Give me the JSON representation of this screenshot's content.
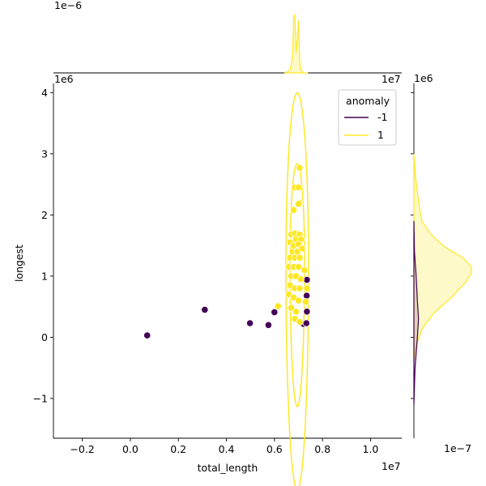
{
  "chart_data": {
    "type": "scatter",
    "title": "",
    "xlabel": "total_length",
    "ylabel": "longest",
    "x_offset_label": "1e7",
    "y_offset_label": "1e6",
    "xlim": [
      -3200000,
      11300000
    ],
    "ylim": [
      -1650000,
      4150000
    ],
    "xticks": [
      -2000000,
      0,
      2000000,
      4000000,
      6000000,
      8000000,
      10000000
    ],
    "xtick_labels": [
      "−0.2",
      "0.0",
      "0.2",
      "0.4",
      "0.6",
      "0.8",
      "1.0"
    ],
    "yticks": [
      -1000000,
      0,
      1000000,
      2000000,
      3000000,
      4000000
    ],
    "ytick_labels": [
      "−1",
      "0",
      "1",
      "2",
      "3",
      "4"
    ],
    "grid": false,
    "legend": {
      "title": "anomaly",
      "placement": "top-right",
      "entries": [
        {
          "label": "-1",
          "color": "#440154"
        },
        {
          "label": "1",
          "color": "#fde725"
        }
      ]
    },
    "series": [
      {
        "name": "-1",
        "color": "#440154",
        "points": [
          [
            700000,
            30000
          ],
          [
            3100000,
            450000
          ],
          [
            4980000,
            230000
          ],
          [
            5750000,
            200000
          ],
          [
            6000000,
            410000
          ],
          [
            7200000,
            220000
          ],
          [
            7330000,
            230000
          ],
          [
            7350000,
            420000
          ],
          [
            7340000,
            680000
          ],
          [
            7350000,
            940000
          ]
        ]
      },
      {
        "name": "1",
        "color": "#fde725",
        "points": [
          [
            7050000,
            2770000
          ],
          [
            6850000,
            2450000
          ],
          [
            7000000,
            2450000
          ],
          [
            7050000,
            2200000
          ],
          [
            7000000,
            2180000
          ],
          [
            6800000,
            2080000
          ],
          [
            6700000,
            1680000
          ],
          [
            6850000,
            1700000
          ],
          [
            7050000,
            1680000
          ],
          [
            6900000,
            1600000
          ],
          [
            7100000,
            1600000
          ],
          [
            6650000,
            1550000
          ],
          [
            6800000,
            1500000
          ],
          [
            7000000,
            1520000
          ],
          [
            6750000,
            1400000
          ],
          [
            6950000,
            1400000
          ],
          [
            7150000,
            1450000
          ],
          [
            6650000,
            1300000
          ],
          [
            6850000,
            1300000
          ],
          [
            7050000,
            1300000
          ],
          [
            6600000,
            1150000
          ],
          [
            6800000,
            1150000
          ],
          [
            7000000,
            1150000
          ],
          [
            7250000,
            1100000
          ],
          [
            6700000,
            1000000
          ],
          [
            6900000,
            1000000
          ],
          [
            7100000,
            950000
          ],
          [
            6650000,
            850000
          ],
          [
            6850000,
            800000
          ],
          [
            7050000,
            800000
          ],
          [
            7350000,
            800000
          ],
          [
            6600000,
            700000
          ],
          [
            6800000,
            650000
          ],
          [
            7000000,
            600000
          ],
          [
            7300000,
            580000
          ],
          [
            6700000,
            480000
          ],
          [
            6900000,
            420000
          ],
          [
            6150000,
            510000
          ],
          [
            6850000,
            300000
          ],
          [
            7050000,
            250000
          ]
        ]
      }
    ],
    "marginal_x": {
      "offset_label": "1e−6",
      "series": [
        {
          "name": "1",
          "x": [
            6450000,
            6650000,
            6750000,
            6800000,
            6850000,
            6900000,
            6950000,
            7000000,
            7050000,
            7100000,
            7200000,
            7400000
          ],
          "density": [
            0.0,
            0.05,
            0.25,
            0.95,
            1.0,
            0.35,
            0.55,
            0.9,
            0.2,
            0.05,
            0.0,
            0.0
          ]
        }
      ]
    },
    "marginal_y": {
      "offset_label": "1e−7",
      "series": [
        {
          "name": "1",
          "y": [
            -350000,
            -100000,
            150000,
            400000,
            650000,
            900000,
            1050000,
            1150000,
            1300000,
            1500000,
            1700000,
            1900000,
            2100000,
            2300000,
            2600000,
            3000000
          ],
          "density": [
            0.0,
            0.05,
            0.15,
            0.35,
            0.65,
            0.9,
            1.0,
            1.0,
            0.85,
            0.5,
            0.28,
            0.14,
            0.1,
            0.07,
            0.03,
            0.0
          ]
        },
        {
          "name": "-1",
          "y": [
            -1100000,
            -500000,
            0,
            300000,
            600000,
            1000000,
            1400000,
            1900000
          ],
          "density": [
            0.0,
            0.02,
            0.06,
            0.08,
            0.06,
            0.04,
            0.01,
            0.0
          ]
        }
      ]
    }
  }
}
